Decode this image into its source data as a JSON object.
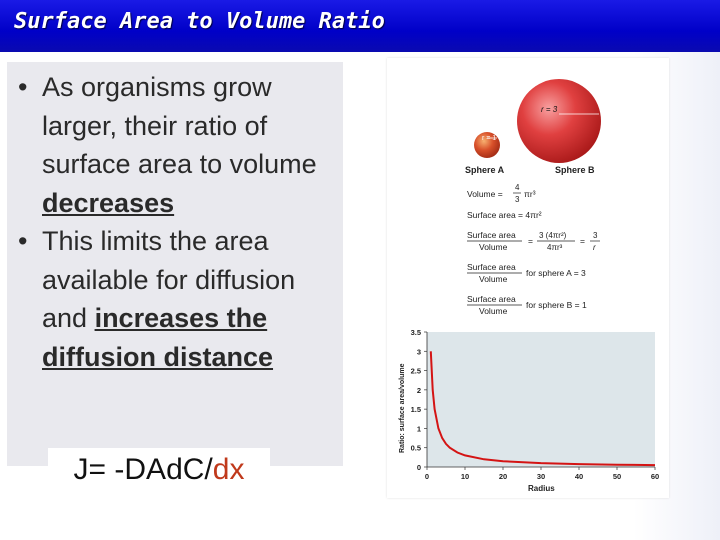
{
  "header": {
    "title": "Surface Area to Volume Ratio"
  },
  "bullets": [
    {
      "parts": [
        {
          "text": "As organisms grow larger, their ratio of surface area to volume ",
          "style": "plain"
        },
        {
          "text": "decreases",
          "style": "underline"
        }
      ]
    },
    {
      "parts": [
        {
          "text": "This limits the area available for diffusion and ",
          "style": "plain"
        },
        {
          "text": "increases the diffusion distance",
          "style": "underline"
        }
      ]
    }
  ],
  "equation": {
    "main": "J= -DAd",
    "c": "C/",
    "dx": "dx"
  },
  "figure": {
    "sphere_a": {
      "label": "Sphere A",
      "radius_label": "r = 1"
    },
    "sphere_b": {
      "label": "Sphere B",
      "radius_label": "r = 3"
    },
    "formulas": {
      "volume_label": "Volume =",
      "volume_frac_num": "4",
      "volume_frac_den": "3",
      "volume_expr": "πr³",
      "surface_label": "Surface area = 4πr²",
      "ratio_num": "Surface area",
      "ratio_den": "Volume",
      "ratio_eq": "=",
      "ratio_expr_num": "3 (4πr²)",
      "ratio_expr_den": "4πr³",
      "ratio_result_num": "3",
      "ratio_result_den": "r",
      "ratio_a_text": "for sphere A = 3",
      "ratio_b_text": "for sphere B = 1"
    },
    "colors": {
      "sphere": "#d42a2a",
      "plot_bg": "#dde6ea",
      "curve": "#d41414"
    }
  },
  "chart_data": {
    "type": "line",
    "xlabel": "Radius",
    "ylabel": "Ratio: surface area/volume",
    "xlim": [
      0,
      60
    ],
    "ylim": [
      0,
      3.5
    ],
    "xticks": [
      0,
      10,
      20,
      30,
      40,
      50,
      60
    ],
    "yticks": [
      0,
      0.5,
      1,
      1.5,
      2,
      2.5,
      3,
      3.5
    ],
    "series": [
      {
        "x": [
          1,
          1.5,
          2,
          3,
          4,
          5,
          6,
          8,
          10,
          15,
          20,
          30,
          40,
          50,
          60
        ],
        "values": [
          3,
          2,
          1.5,
          1,
          0.75,
          0.6,
          0.5,
          0.375,
          0.3,
          0.2,
          0.15,
          0.1,
          0.075,
          0.06,
          0.05
        ]
      }
    ],
    "grid": false
  }
}
